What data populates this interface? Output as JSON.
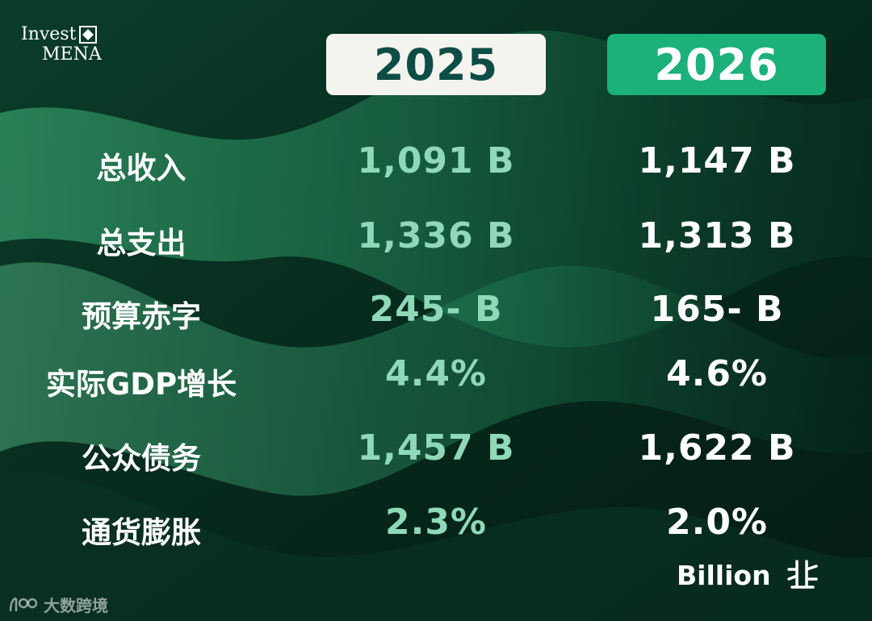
{
  "logo": {
    "line1": "Invest",
    "line2": "MENA"
  },
  "years": [
    "2025",
    "2026"
  ],
  "rows": [
    {
      "label": "总收入",
      "v2025": "1,091 B",
      "v2026": "1,147 B"
    },
    {
      "label": "总支出",
      "v2025": "1,336 B",
      "v2026": "1,313 B"
    },
    {
      "label": "预算赤字",
      "v2025": "245- B",
      "v2026": "165- B"
    },
    {
      "label": "实际GDP增长",
      "v2025": "4.4%",
      "v2026": "4.6%"
    },
    {
      "label": "公众债务",
      "v2025": "1,457 B",
      "v2026": "1,622 B"
    },
    {
      "label": "通货膨胀",
      "v2025": "2.3%",
      "v2026": "2.0%"
    }
  ],
  "brand": {
    "text": "Billion"
  },
  "watermark": {
    "text": "大数跨境"
  },
  "colors": {
    "header2025_bg": "#f4f4ef",
    "header2025_text": "#0e4d46",
    "header2026_bg": "#1cb07b",
    "value2025": "#8fd9b9",
    "value2026": "#ffffff"
  }
}
